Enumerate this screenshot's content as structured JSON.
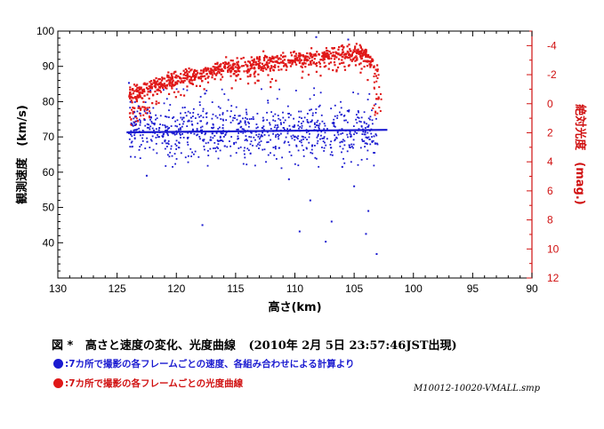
{
  "chart_data": {
    "type": "scatter",
    "xlabel": "高さ(km)",
    "ylabel_left": "観測速度　(km/s)",
    "ylabel_right": "絶対光度　(mag.)",
    "x_ticks": [
      130,
      125,
      120,
      115,
      110,
      105,
      100,
      95,
      90
    ],
    "y_left_ticks": [
      100,
      90,
      80,
      70,
      60,
      50,
      40
    ],
    "y_right_ticks": [
      -4,
      -2,
      0,
      2,
      4,
      6,
      8,
      10,
      12
    ],
    "xlim": [
      130,
      90
    ],
    "ylim_left": [
      30,
      100
    ],
    "ylim_right": [
      12,
      -5
    ],
    "x_reversed": true,
    "y_right_reversed": true,
    "grid": false,
    "colors": {
      "velocity": "#1a1ad0",
      "magnitude": "#e01818",
      "fit": "#1a1ad0",
      "right_axis": "#d01010"
    },
    "velocity_fit": {
      "x": [
        124.2,
        102.2
      ],
      "y": [
        71.3,
        72.0
      ]
    },
    "velocity_core": {
      "x_range": [
        124,
        103
      ],
      "mean": 71.5,
      "spread": 8
    },
    "velocity_outliers": [
      {
        "x": 124,
        "y": 85.3
      },
      {
        "x": 122.5,
        "y": 59
      },
      {
        "x": 117.8,
        "y": 45
      },
      {
        "x": 110.5,
        "y": 58
      },
      {
        "x": 109.6,
        "y": 43.2
      },
      {
        "x": 108.7,
        "y": 52
      },
      {
        "x": 108.2,
        "y": 98.3
      },
      {
        "x": 107.4,
        "y": 40.3
      },
      {
        "x": 106.9,
        "y": 46
      },
      {
        "x": 106,
        "y": 61.5
      },
      {
        "x": 105.5,
        "y": 97.6
      },
      {
        "x": 105,
        "y": 56
      },
      {
        "x": 104,
        "y": 42.5
      },
      {
        "x": 103.8,
        "y": 49
      },
      {
        "x": 103.1,
        "y": 36.8
      }
    ],
    "magnitude_curve": {
      "x": [
        124,
        123,
        122,
        121,
        120,
        119,
        118,
        117,
        116,
        115,
        114,
        113,
        112,
        111,
        110,
        109,
        108,
        107,
        106,
        105,
        104.5,
        104,
        103.5,
        103
      ],
      "y": [
        -0.5,
        -0.8,
        -1.2,
        -1.5,
        -1.7,
        -1.9,
        -2.1,
        -2.3,
        -2.45,
        -2.55,
        -2.65,
        -2.75,
        -2.85,
        -2.95,
        -3.05,
        -3.15,
        -3.2,
        -3.3,
        -3.45,
        -3.5,
        -3.45,
        -3.3,
        -2.8,
        -2.2
      ]
    }
  },
  "caption": {
    "figure_label": "図 *",
    "title": "高さと速度の変化、光度曲線",
    "date": "(2010年 2月 5日 23:57:46JST出現)"
  },
  "legend": [
    {
      "color": "#1a1ad0",
      "text": ":7カ所で撮影の各フレームごとの速度、各組み合わせによる計算より"
    },
    {
      "color": "#e01818",
      "text": ":7カ所で撮影の各フレームごとの光度曲線"
    }
  ],
  "filename": "M10012-10020-VMALL.smp"
}
